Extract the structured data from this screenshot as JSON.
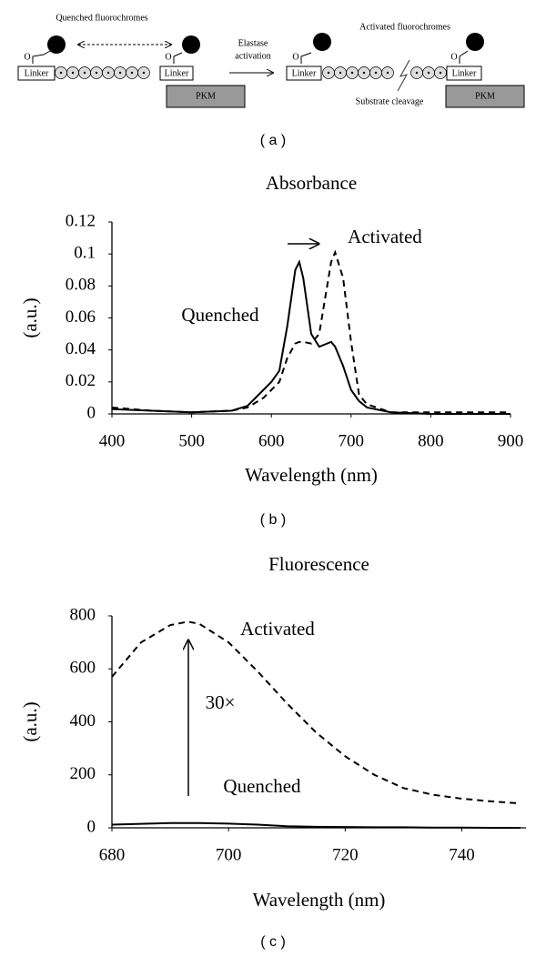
{
  "diagram": {
    "panel_label": "( a )",
    "left": {
      "title": "Quenched fluorochromes",
      "oxygen_left": "O",
      "oxygen_right": "O",
      "linker_left": "Linker",
      "linker_right": "Linker",
      "carrier": "PKM"
    },
    "arrow_label": [
      "Elastase",
      "activation"
    ],
    "right": {
      "title": "Activated fluorochromes",
      "oxygen_left": "O",
      "oxygen_right": "O",
      "linker_left": "Linker",
      "linker_right": "Linker",
      "carrier": "PKM",
      "cleavage": "Substrate cleavage"
    }
  },
  "chart_data": [
    {
      "type": "line",
      "title": "Absorbance",
      "panel_label": "( b )",
      "xlabel": "Wavelength (nm)",
      "ylabel": "(a.u.)",
      "x": [
        400,
        450,
        500,
        550,
        570,
        590,
        600,
        610,
        620,
        630,
        635,
        640,
        650,
        660,
        670,
        675,
        680,
        690,
        700,
        710,
        720,
        750,
        800,
        900
      ],
      "series": [
        {
          "name": "Quenched",
          "color": "#000000",
          "line_style": "solid",
          "values": [
            0.003,
            0.002,
            0.001,
            0.002,
            0.005,
            0.015,
            0.02,
            0.027,
            0.055,
            0.09,
            0.095,
            0.085,
            0.05,
            0.042,
            0.044,
            0.045,
            0.042,
            0.03,
            0.015,
            0.008,
            0.004,
            0.001,
            0,
            0
          ]
        },
        {
          "name": "Activated",
          "color": "#000000",
          "line_style": "dashed",
          "values": [
            0.004,
            0.002,
            0.001,
            0.002,
            0.004,
            0.01,
            0.015,
            0.02,
            0.035,
            0.044,
            0.045,
            0.045,
            0.044,
            0.05,
            0.08,
            0.095,
            0.101,
            0.085,
            0.045,
            0.012,
            0.006,
            0.001,
            0.001,
            0.001
          ]
        }
      ],
      "xlim": [
        400,
        900
      ],
      "xticks": [
        400,
        500,
        600,
        700,
        800,
        900
      ],
      "ylim": [
        0,
        0.12
      ],
      "yticks": [
        0,
        0.02,
        0.04,
        0.06,
        0.08,
        0.1,
        0.12
      ]
    },
    {
      "type": "line",
      "title": "Fluorescence",
      "panel_label": "( c )",
      "xlabel": "Wavelength (nm)",
      "ylabel": "(a.u.)",
      "annotation": "30×",
      "x": [
        680,
        685,
        690,
        693,
        695,
        700,
        705,
        710,
        715,
        720,
        725,
        730,
        735,
        740,
        745,
        750
      ],
      "series": [
        {
          "name": "Activated",
          "color": "#000000",
          "line_style": "dashed",
          "values": [
            570,
            700,
            765,
            778,
            770,
            700,
            590,
            470,
            360,
            270,
            200,
            150,
            125,
            110,
            100,
            92
          ]
        },
        {
          "name": "Quenched",
          "color": "#000000",
          "line_style": "solid",
          "values": [
            12,
            15,
            18,
            18,
            18,
            16,
            12,
            6,
            4,
            3,
            2,
            2,
            1,
            1,
            0,
            0
          ]
        }
      ],
      "xlim": [
        680,
        751
      ],
      "xticks": [
        680,
        700,
        720,
        740
      ],
      "ylim": [
        0,
        800
      ],
      "yticks": [
        0,
        200,
        400,
        600,
        800
      ]
    }
  ]
}
